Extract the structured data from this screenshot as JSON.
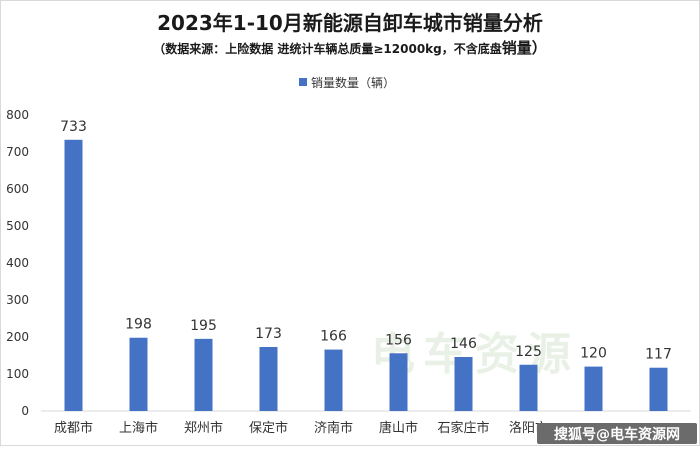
{
  "chart_data": {
    "type": "bar",
    "title": "2023年1-10月新能源自卸车城市销量分析",
    "subtitle_small": "（数据来源：上险数据 进统计车辆总质量≥12000kg，不含底盘",
    "subtitle_large": "销量）",
    "legend": [
      "销量数量（辆）"
    ],
    "categories": [
      "成都市",
      "上海市",
      "郑州市",
      "保定市",
      "济南市",
      "唐山市",
      "石家庄市",
      "洛阳市",
      "",
      ""
    ],
    "series": [
      {
        "name": "销量数量（辆）",
        "values": [
          733,
          198,
          195,
          173,
          166,
          156,
          146,
          125,
          120,
          117
        ]
      }
    ],
    "data_labels": [
      "733",
      "198",
      "195",
      "173",
      "166",
      "156",
      "146",
      "125",
      "120",
      "117"
    ],
    "yticks": [
      "0",
      "100",
      "200",
      "300",
      "400",
      "500",
      "600",
      "700",
      "800"
    ],
    "ylim": [
      0,
      800
    ],
    "grid": false,
    "legend_position": "top",
    "colors": {
      "bar": "#4472c4",
      "watermark": "#8ab87a",
      "credit_bg": "#6b6b6b"
    }
  },
  "watermark": "电车资源",
  "credit": "搜狐号@电车资源网"
}
